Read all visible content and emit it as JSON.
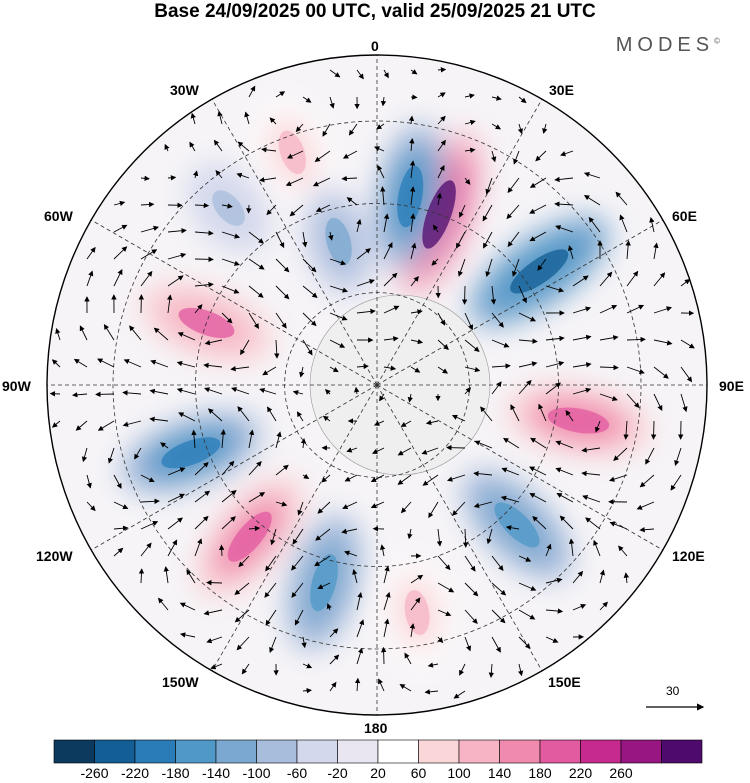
{
  "title": "Base 24/09/2025 00 UTC, valid 25/09/2025 21 UTC",
  "brand": "MODES",
  "brand_mark": "©",
  "longitude_labels": {
    "lon0": "0",
    "lon30e": "30E",
    "lon60e": "60E",
    "lon90e": "90E",
    "lon120e": "120E",
    "lon150e": "150E",
    "lon180": "180",
    "lon150w": "150W",
    "lon120w": "120W",
    "lon90w": "90W",
    "lon60w": "60W",
    "lon30w": "30W"
  },
  "wind_scale": {
    "label": "30",
    "icon": "arrow-right-icon"
  },
  "colorbar": {
    "ticks": [
      "-260",
      "-220",
      "-180",
      "-140",
      "-100",
      "-60",
      "-20",
      "20",
      "60",
      "100",
      "140",
      "180",
      "220",
      "260"
    ],
    "colors": [
      "#0b3a5e",
      "#135e94",
      "#2a7cb8",
      "#4f98c8",
      "#7ba8d0",
      "#a8bcdc",
      "#d3d8ec",
      "#e9e6f2",
      "#ffffff",
      "#fad6d8",
      "#f6b4c4",
      "#f08aae",
      "#e25aa0",
      "#c62a8e",
      "#971682",
      "#4e0a6c"
    ]
  },
  "chart_data": {
    "type": "heatmap",
    "projection": "south-polar-stereographic",
    "field": "geopotential height anomaly (shaded) with wind vectors",
    "anomaly_centres": [
      {
        "lon": 20,
        "sign": "positive",
        "value": 260
      },
      {
        "lon": 10,
        "sign": "negative",
        "value": -200
      },
      {
        "lon": 55,
        "sign": "negative",
        "value": -240
      },
      {
        "lon": 100,
        "sign": "positive",
        "value": 200
      },
      {
        "lon": 135,
        "sign": "negative",
        "value": -180
      },
      {
        "lon": 170,
        "sign": "positive",
        "value": 100
      },
      {
        "lon": -165,
        "sign": "negative",
        "value": -180
      },
      {
        "lon": -140,
        "sign": "positive",
        "value": 200
      },
      {
        "lon": -110,
        "sign": "negative",
        "value": -200
      },
      {
        "lon": -70,
        "sign": "positive",
        "value": 180
      },
      {
        "lon": -40,
        "sign": "negative",
        "value": -80
      },
      {
        "lon": -20,
        "sign": "positive",
        "value": 100
      },
      {
        "lon": -15,
        "sign": "negative",
        "value": -120
      }
    ],
    "colorbar_range": [
      -260,
      260
    ],
    "contour_interval": 40
  }
}
